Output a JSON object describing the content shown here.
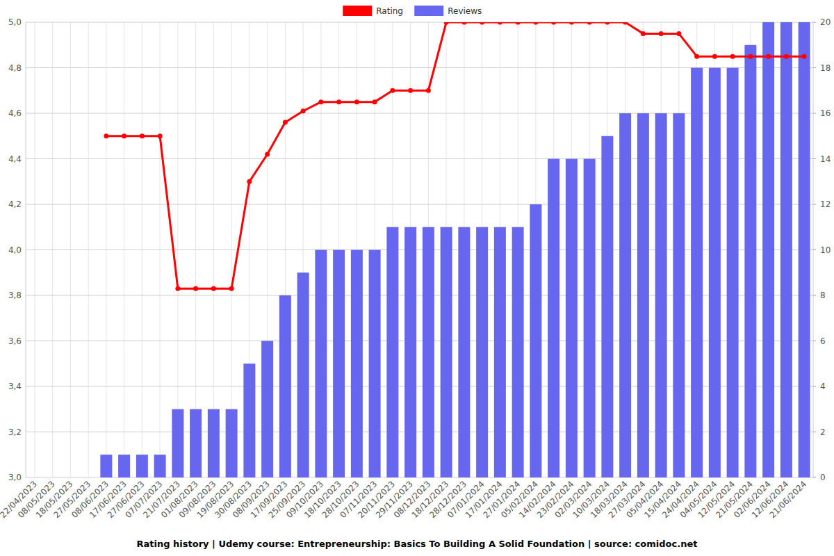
{
  "chart_data": {
    "type": "bar",
    "title": "Rating history | Udemy course: Entrepreneurship: Basics To Building A Solid Foundation | source: comidoc.net",
    "categories": [
      "22/04/2023",
      "08/05/2023",
      "18/05/2023",
      "27/05/2023",
      "08/06/2023",
      "17/06/2023",
      "27/06/2023",
      "07/07/2023",
      "21/07/2023",
      "01/08/2023",
      "09/08/2023",
      "19/08/2023",
      "30/08/2023",
      "08/09/2023",
      "17/09/2023",
      "25/09/2023",
      "09/10/2023",
      "18/10/2023",
      "28/10/2023",
      "07/11/2023",
      "20/11/2023",
      "29/11/2023",
      "08/12/2023",
      "18/12/2023",
      "28/12/2023",
      "07/01/2024",
      "17/01/2024",
      "27/01/2024",
      "05/02/2024",
      "14/02/2024",
      "23/02/2024",
      "02/03/2024",
      "10/03/2024",
      "18/03/2024",
      "27/03/2024",
      "05/04/2024",
      "15/04/2024",
      "24/04/2024",
      "04/05/2024",
      "12/05/2024",
      "21/05/2024",
      "02/06/2024",
      "12/06/2024",
      "21/06/2024"
    ],
    "series": [
      {
        "name": "Rating",
        "type": "line",
        "color": "#ff0000",
        "marker": "circle",
        "axis": "y",
        "values": [
          null,
          null,
          null,
          null,
          4.5,
          4.5,
          4.5,
          4.5,
          3.83,
          3.83,
          3.83,
          3.83,
          4.3,
          4.42,
          4.56,
          4.61,
          4.65,
          4.65,
          4.65,
          4.65,
          4.7,
          4.7,
          4.7,
          5.0,
          5.0,
          5.0,
          5.0,
          5.0,
          5.0,
          5.0,
          5.0,
          5.0,
          5.0,
          5.0,
          4.95,
          4.95,
          4.95,
          4.85,
          4.85,
          4.85,
          4.85,
          4.85,
          4.85,
          4.85
        ]
      },
      {
        "name": "Reviews",
        "type": "bar",
        "color": "#6666ee",
        "axis": "y2",
        "values": [
          null,
          null,
          null,
          null,
          1,
          1,
          1,
          1,
          3,
          3,
          3,
          3,
          5,
          6,
          8,
          9,
          10,
          10,
          10,
          10,
          11,
          11,
          11,
          11,
          11,
          11,
          11,
          11,
          12,
          14,
          14,
          14,
          15,
          16,
          16,
          16,
          16,
          18,
          18,
          18,
          19,
          20,
          20,
          20
        ]
      }
    ],
    "ylim": [
      3.0,
      5.0
    ],
    "yticks": [
      {
        "value": 3.0,
        "label": "3,0"
      },
      {
        "value": 3.2,
        "label": "3,2"
      },
      {
        "value": 3.4,
        "label": "3,4"
      },
      {
        "value": 3.6,
        "label": "3,6"
      },
      {
        "value": 3.8,
        "label": "3,8"
      },
      {
        "value": 4.0,
        "label": "4,0"
      },
      {
        "value": 4.2,
        "label": "4,2"
      },
      {
        "value": 4.4,
        "label": "4,4"
      },
      {
        "value": 4.6,
        "label": "4,6"
      },
      {
        "value": 4.8,
        "label": "4,8"
      },
      {
        "value": 5.0,
        "label": "5,0"
      }
    ],
    "y2lim": [
      0,
      20
    ],
    "y2ticks": [
      0,
      2,
      4,
      6,
      8,
      10,
      12,
      14,
      16,
      18,
      20
    ],
    "grid": true,
    "legend": "top"
  }
}
